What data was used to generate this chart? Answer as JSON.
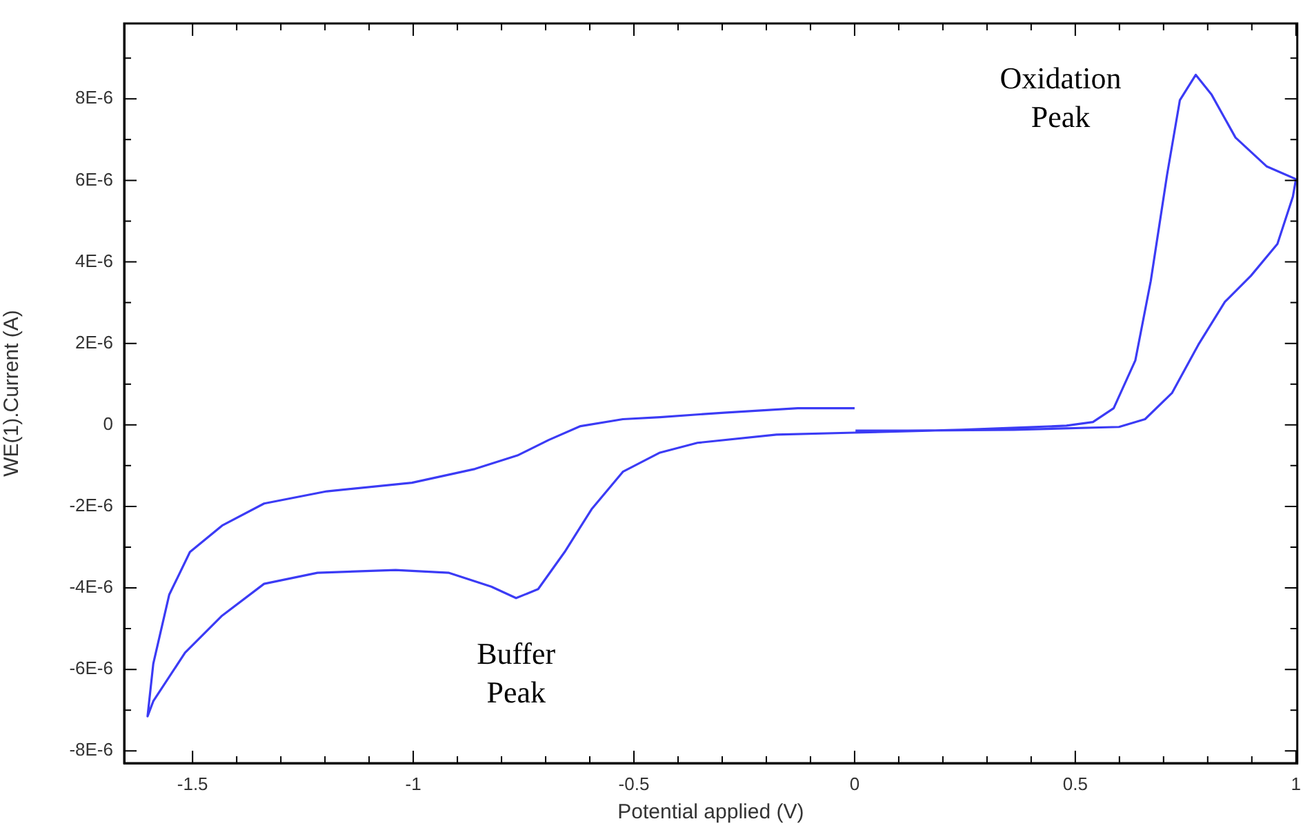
{
  "chart_data": {
    "type": "line",
    "xlabel": "Potential applied (V)",
    "ylabel": "WE(1).Current (A)",
    "grid": false,
    "legend": false,
    "marker": "none",
    "line_style": "solid",
    "xlim": [
      -1.655,
      1.003
    ],
    "ylim": [
      -8.3e-06,
      9.85e-06
    ],
    "xticks": [
      -1.5,
      {
        "value": -1.4,
        "label": null
      },
      {
        "value": -1.3,
        "label": null
      },
      {
        "value": -1.2,
        "label": null
      },
      {
        "value": -1.1,
        "label": null
      },
      -1,
      {
        "value": -0.9,
        "label": null
      },
      {
        "value": -0.8,
        "label": null
      },
      {
        "value": -0.7,
        "label": null
      },
      {
        "value": -0.6,
        "label": null
      },
      -0.5,
      {
        "value": -0.4,
        "label": null
      },
      {
        "value": -0.3,
        "label": null
      },
      {
        "value": -0.2,
        "label": null
      },
      {
        "value": -0.1,
        "label": null
      },
      0,
      {
        "value": 0.1,
        "label": null
      },
      {
        "value": 0.2,
        "label": null
      },
      {
        "value": 0.3,
        "label": null
      },
      {
        "value": 0.4,
        "label": null
      },
      0.5,
      {
        "value": 0.6,
        "label": null
      },
      {
        "value": 0.7,
        "label": null
      },
      {
        "value": 0.8,
        "label": null
      },
      {
        "value": 0.9,
        "label": null
      },
      1
    ],
    "yticks": [
      {
        "value": -8e-06,
        "label": "-8E-6"
      },
      {
        "value": -7e-06,
        "label": null
      },
      {
        "value": -6e-06,
        "label": "-6E-6"
      },
      {
        "value": -5e-06,
        "label": null
      },
      {
        "value": -4e-06,
        "label": "-4E-6"
      },
      {
        "value": -3e-06,
        "label": null
      },
      {
        "value": -2e-06,
        "label": "-2E-6"
      },
      {
        "value": -1e-06,
        "label": null
      },
      0,
      {
        "value": 1e-06,
        "label": null
      },
      {
        "value": 2e-06,
        "label": "2E-6"
      },
      {
        "value": 3e-06,
        "label": null
      },
      {
        "value": 4e-06,
        "label": "4E-6"
      },
      {
        "value": 5e-06,
        "label": null
      },
      {
        "value": 6e-06,
        "label": "6E-6"
      },
      {
        "value": 7e-06,
        "label": null
      },
      {
        "value": 8e-06,
        "label": "8E-6"
      },
      {
        "value": 9e-06,
        "label": null
      }
    ],
    "annotations": [
      {
        "text": "Oxidation Peak",
        "x": 0.773,
        "y": 8.59e-06
      },
      {
        "text": "Buffer Peak",
        "x": -0.767,
        "y": -4.25e-06
      }
    ],
    "series": [
      {
        "color": "#3b3bf5",
        "x": [
          0,
          -0.129,
          -0.296,
          -0.441,
          -0.525,
          -0.621,
          -0.693,
          -0.764,
          -0.86,
          -1.003,
          -1.196,
          -1.338,
          -1.433,
          -1.506,
          -1.553,
          -1.589,
          -1.602,
          -1.589,
          -1.517,
          -1.433,
          -1.338,
          -1.217,
          -1.04,
          -0.919,
          -0.823,
          -0.767,
          -0.717,
          -0.657,
          -0.596,
          -0.525,
          -0.441,
          -0.356,
          -0.177,
          0,
          0.242,
          0.48,
          0.54,
          0.587,
          0.636,
          0.671,
          0.708,
          0.737,
          0.773,
          0.809,
          0.863,
          0.934,
          1.0,
          0.993,
          0.958,
          0.898,
          0.839,
          0.779,
          0.719,
          0.658,
          0.599,
          0.36,
          0.121,
          0.002
        ],
        "values": [
          4.1e-07,
          4.1e-07,
          3e-07,
          1.9e-07,
          1.4e-07,
          -3e-08,
          -3.7e-07,
          -7.5e-07,
          -1.08e-06,
          -1.42e-06,
          -1.63e-06,
          -1.93e-06,
          -2.47e-06,
          -3.12e-06,
          -4.17e-06,
          -5.86e-06,
          -7.15e-06,
          -6.78e-06,
          -5.59e-06,
          -4.68e-06,
          -3.9e-06,
          -3.63e-06,
          -3.56e-06,
          -3.63e-06,
          -3.97e-06,
          -4.25e-06,
          -4.03e-06,
          -3.12e-06,
          -2.07e-06,
          -1.15e-06,
          -6.8e-07,
          -4.4e-07,
          -2.4e-07,
          -1.9e-07,
          -1.2e-07,
          -2e-08,
          7e-08,
          4.1e-07,
          1.58e-06,
          3.53e-06,
          6.14e-06,
          7.97e-06,
          8.59e-06,
          8.1e-06,
          7.05e-06,
          6.34e-06,
          6.03e-06,
          5.6e-06,
          4.44e-06,
          3.66e-06,
          3.02e-06,
          1.97e-06,
          7.8e-07,
          1.4e-07,
          -5e-08,
          -1.2e-07,
          -1.4e-07,
          -1.4e-07
        ]
      }
    ]
  }
}
